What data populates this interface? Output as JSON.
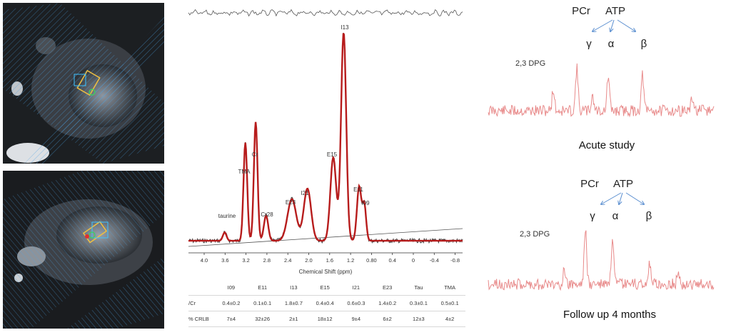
{
  "mri_top": {
    "name": "cardiac-mri-scan-top"
  },
  "mri_bottom": {
    "name": "cardiac-mri-scan-bottom"
  },
  "mrs": {
    "xlabel": "Chemical Shift (ppm)",
    "x_ticks": [
      "4.0",
      "3.6",
      "3.2",
      "2.8",
      "2.4",
      "2.0",
      "1.6",
      "1.2",
      "0.80",
      "0.4",
      "0",
      "-0.4",
      "-0.8"
    ],
    "peak_labels": [
      "taurine",
      "TMA",
      "Cr",
      "Cr28",
      "E23",
      "I21",
      "E15",
      "I13",
      "E11",
      "I09"
    ],
    "table": {
      "headers": [
        "",
        "I09",
        "E11",
        "I13",
        "E15",
        "I21",
        "E23",
        "Tau",
        "TMA"
      ],
      "rows": [
        [
          "/Cr",
          "0.4±0.2",
          "0.1±0.1",
          "1.8±0.7",
          "0.4±0.4",
          "0.6±0.3",
          "1.4±0.2",
          "0.3±0.1",
          "0.5±0.1"
        ],
        [
          "% CRLB",
          "7±4",
          "32±26",
          "2±1",
          "18±12",
          "9±4",
          "6±2",
          "12±3",
          "4±2"
        ]
      ]
    }
  },
  "chart_data": {
    "type": "line",
    "xlabel": "Chemical Shift (ppm)",
    "xlim": [
      4.3,
      -1.0
    ],
    "x_reversed": true,
    "series": [
      {
        "points": [
          [
            3.6,
            0.04
          ],
          [
            3.2,
            0.47
          ],
          [
            3.0,
            0.57
          ],
          [
            2.8,
            0.12
          ],
          [
            2.3,
            0.2
          ],
          [
            2.0,
            0.25
          ],
          [
            1.5,
            0.4
          ],
          [
            1.3,
            1.0
          ],
          [
            1.0,
            0.26
          ],
          [
            0.9,
            0.17
          ],
          [
            0.4,
            0.02
          ],
          [
            -0.8,
            0.02
          ]
        ]
      }
    ]
  },
  "p31_acute": {
    "pcr_label": "PCr",
    "atp_label": "ATP",
    "gamma": "γ",
    "alpha": "α",
    "beta": "β",
    "dpg_label": "2,3 DPG",
    "caption": "Acute study"
  },
  "p31_followup": {
    "pcr_label": "PCr",
    "atp_label": "ATP",
    "gamma": "γ",
    "alpha": "α",
    "beta": "β",
    "dpg_label": "2,3 DPG",
    "caption": "Follow up 4 months"
  },
  "colors": {
    "fit": "#b71c1c",
    "raw": "#333333",
    "p31": "#e88a8a",
    "arrow": "#5b8fd0",
    "grid": "#4aa3e6"
  }
}
